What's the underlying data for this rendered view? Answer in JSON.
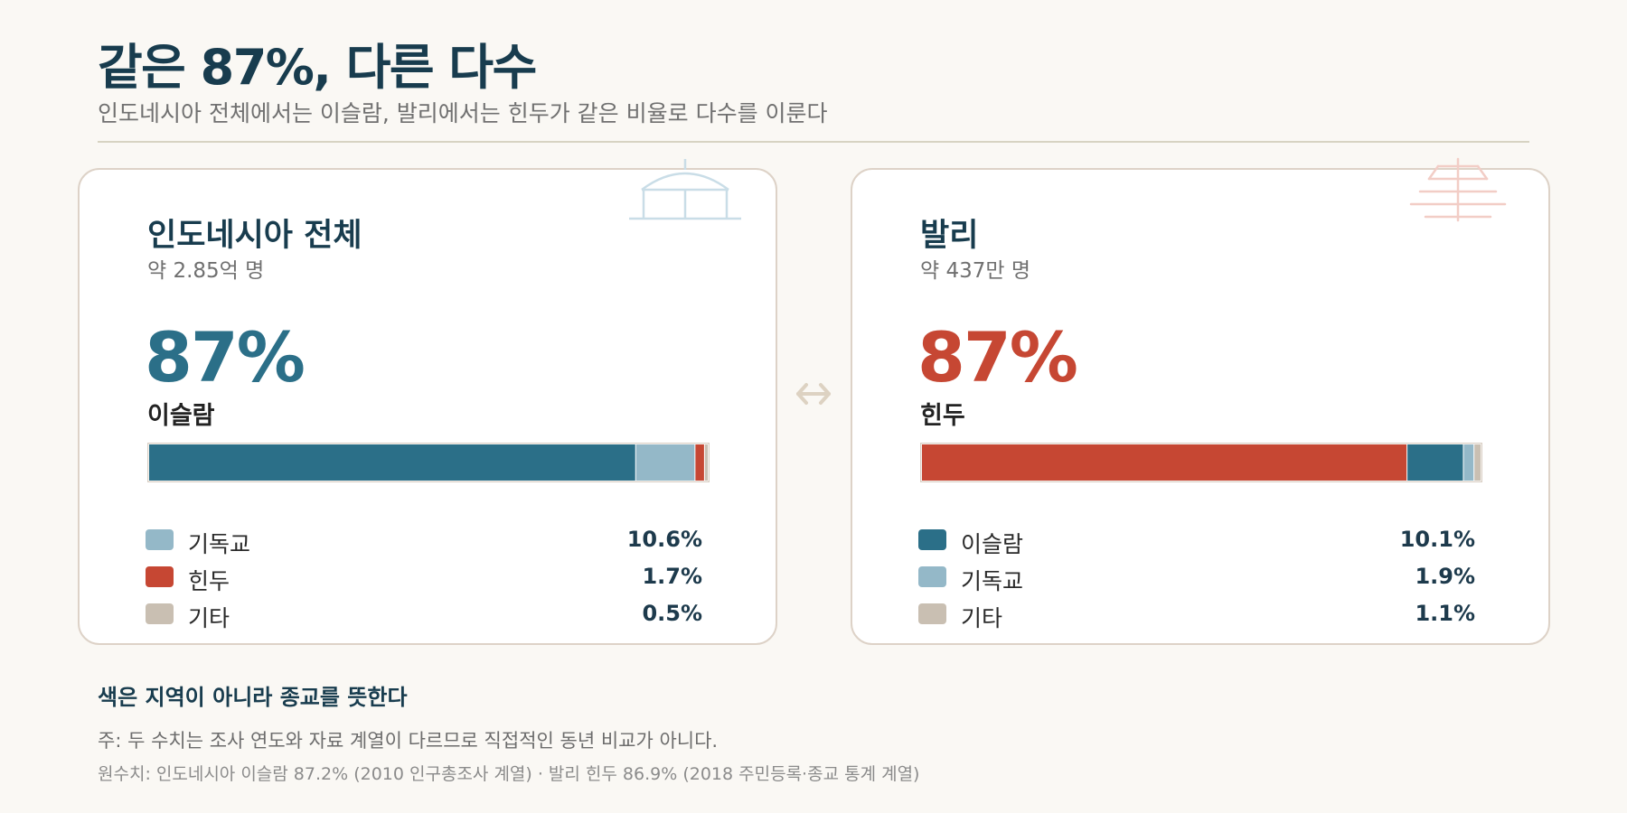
{
  "header": {
    "title": "같은 87%, 다른 다수",
    "subtitle": "인도네시아 전체에서는 이슬람, 발리에서는 힌두가 같은 비율로 다수를 이룬다"
  },
  "colors": {
    "islam": "#2b6f88",
    "christian": "#94b8c8",
    "hindu": "#c64733",
    "other": "#c9bfb2",
    "background": "#faf8f4",
    "ink": "#183c4e"
  },
  "connector_icon": "double-arrow-icon",
  "chart_data": [
    {
      "type": "bar",
      "stacked": true,
      "orientation": "horizontal",
      "region": "인도네시아 전체",
      "population": "약 2.85억 명",
      "headline_percent": "87%",
      "headline_label": "이슬람",
      "icon": "mosque-dome-icon",
      "segments": [
        {
          "name": "이슬람",
          "value": 87,
          "color": "#2b6f88"
        },
        {
          "name": "기독교",
          "value": 10.6,
          "color": "#94b8c8"
        },
        {
          "name": "힌두",
          "value": 1.7,
          "color": "#c64733"
        },
        {
          "name": "기타",
          "value": 0.5,
          "color": "#c9bfb2"
        }
      ],
      "legend": [
        {
          "label": "기독교",
          "value": "10.6%",
          "color": "#94b8c8"
        },
        {
          "label": "힌두",
          "value": "1.7%",
          "color": "#c64733"
        },
        {
          "label": "기타",
          "value": "0.5%",
          "color": "#c9bfb2"
        }
      ]
    },
    {
      "type": "bar",
      "stacked": true,
      "orientation": "horizontal",
      "region": "발리",
      "population": "약 437만 명",
      "headline_percent": "87%",
      "headline_label": "힌두",
      "icon": "pagoda-meru-icon",
      "segments": [
        {
          "name": "힌두",
          "value": 87,
          "color": "#c64733"
        },
        {
          "name": "이슬람",
          "value": 10.1,
          "color": "#2b6f88"
        },
        {
          "name": "기독교",
          "value": 1.9,
          "color": "#94b8c8"
        },
        {
          "name": "기타",
          "value": 1.1,
          "color": "#c9bfb2"
        }
      ],
      "legend": [
        {
          "label": "이슬람",
          "value": "10.1%",
          "color": "#2b6f88"
        },
        {
          "label": "기독교",
          "value": "1.9%",
          "color": "#94b8c8"
        },
        {
          "label": "기타",
          "value": "1.1%",
          "color": "#c9bfb2"
        }
      ]
    }
  ],
  "footer": {
    "headline": "색은 지역이 아니라 종교를 뜻한다",
    "note": "주: 두 수치는 조사 연도와 자료 계열이 다르므로 직접적인 동년 비교가 아니다.",
    "source": "원수치: 인도네시아 이슬람 87.2% (2010 인구총조사 계열) · 발리 힌두 86.9% (2018 주민등록·종교 통계 계열)"
  }
}
